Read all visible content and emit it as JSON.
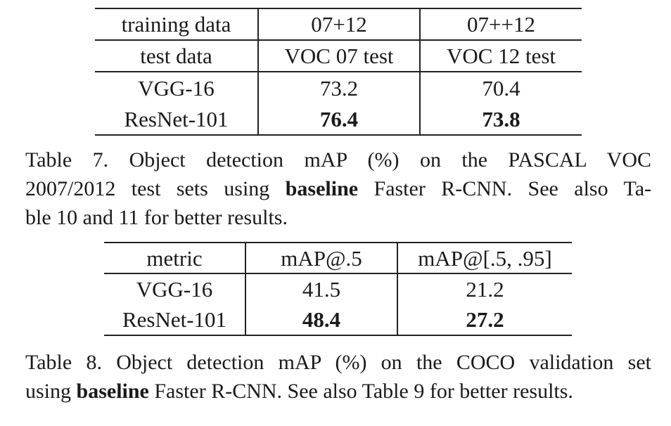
{
  "table7": {
    "rows": [
      [
        "training data",
        "07+12",
        "07++12"
      ],
      [
        "test data",
        "VOC 07 test",
        "VOC 12 test"
      ],
      [
        "VGG-16",
        "73.2",
        "70.4"
      ],
      [
        "ResNet-101",
        "76.4",
        "73.8"
      ]
    ]
  },
  "caption7": {
    "line1": "Table 7. Object detection mAP (%) on the PASCAL VOC",
    "line2_pre": "2007/2012 test sets using ",
    "line2_bold": "baseline",
    "line2_post": " Faster R-CNN. See also Ta-",
    "line3": "ble 10 and 11 for better results."
  },
  "table8": {
    "header": [
      "metric",
      "mAP@.5",
      "mAP@[.5, .95]"
    ],
    "rows": [
      [
        "VGG-16",
        "41.5",
        "21.2"
      ],
      [
        "ResNet-101",
        "48.4",
        "27.2"
      ]
    ]
  },
  "caption8": {
    "line1": "Table 8. Object detection mAP (%) on the COCO validation set",
    "line2_pre": "using ",
    "line2_bold": "baseline",
    "line2_post": " Faster R-CNN. See also Table 9 for better results."
  }
}
